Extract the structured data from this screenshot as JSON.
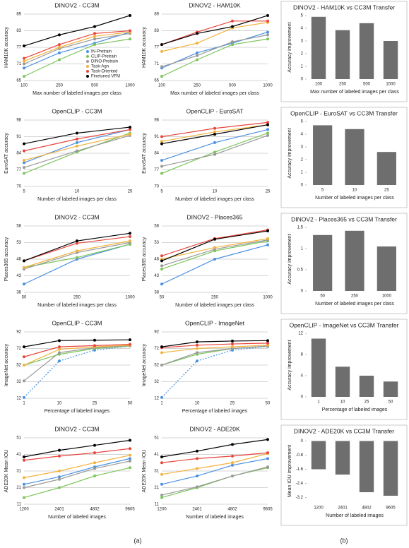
{
  "chart_data": [
    {
      "type": "line",
      "title": "DINOV2 - CC3M",
      "x_label": "Max number of labeled images per class",
      "y_label": "HAM10K accuracy",
      "categories": [
        "100",
        "250",
        "500",
        "1000"
      ],
      "ylim": [
        65,
        89
      ],
      "yticks": [
        65,
        71,
        77,
        83,
        89
      ],
      "grid": true,
      "legend": "lower right",
      "series": [
        {
          "name": "IN-Pretrain",
          "color": "#4a90e2",
          "values": [
            69.5,
            75,
            78.5,
            82.5
          ]
        },
        {
          "name": "CLIP-Pretrain",
          "color": "#7cc55a",
          "values": [
            66.5,
            72.5,
            78,
            80
          ]
        },
        {
          "name": "DINO-Pretrain",
          "color": "#999999",
          "values": [
            71,
            76.5,
            80,
            82
          ]
        },
        {
          "name": "Task-Agn",
          "color": "#f2b33d",
          "values": [
            72,
            77,
            81,
            82.5
          ]
        },
        {
          "name": "Task-Oriented",
          "color": "#e8453c",
          "values": [
            73,
            78,
            82,
            83
          ]
        },
        {
          "name": "Finetuned VFM",
          "color": "#000000",
          "values": [
            77.5,
            81.5,
            84.5,
            88.5
          ]
        }
      ]
    },
    {
      "type": "line",
      "title": "DINOV2 - HAM10K",
      "x_label": "Max number of labeled images per class",
      "y_label": "HAM10K accuracy",
      "categories": [
        "100",
        "250",
        "500",
        "1000"
      ],
      "ylim": [
        65,
        89
      ],
      "yticks": [
        65,
        71,
        77,
        83,
        89
      ],
      "grid": true,
      "series": [
        {
          "color": "#4a90e2",
          "values": [
            69.5,
            75,
            78.5,
            82.5
          ]
        },
        {
          "color": "#7cc55a",
          "values": [
            66.5,
            72.5,
            78,
            80
          ]
        },
        {
          "color": "#999999",
          "values": [
            70,
            74,
            79,
            81.5
          ]
        },
        {
          "color": "#f2b33d",
          "values": [
            75.5,
            78.5,
            84,
            86
          ]
        },
        {
          "color": "#e8453c",
          "values": [
            78,
            82.5,
            86.5,
            86.5
          ]
        },
        {
          "color": "#000000",
          "values": [
            78,
            82,
            84.5,
            88.5
          ]
        }
      ]
    },
    {
      "type": "bar",
      "title": "DINOV2 - HAM10K vs CC3M Transfer",
      "x_label": "Max number of labeled images per class",
      "y_label": "Accuracy improvement",
      "categories": [
        "100",
        "250",
        "500",
        "1000"
      ],
      "values": [
        4.9,
        3.85,
        4.4,
        3.0
      ],
      "color": "#6e6e6e",
      "ylim": [
        0,
        5
      ],
      "yticks": [
        0,
        1,
        2,
        3,
        4,
        5
      ]
    },
    {
      "type": "line",
      "title": "OpenCLIP - CC3M",
      "x_label": "Number of labeled images per class",
      "y_label": "EuroSAT accuracy",
      "categories": [
        "5",
        "10",
        "25"
      ],
      "ylim": [
        70,
        98
      ],
      "yticks": [
        70,
        77,
        84,
        91,
        98
      ],
      "grid": true,
      "series": [
        {
          "color": "#4a90e2",
          "values": [
            80,
            88.5,
            94
          ]
        },
        {
          "color": "#7cc55a",
          "values": [
            75.5,
            84.5,
            92.5
          ]
        },
        {
          "color": "#999999",
          "values": [
            78,
            85,
            91.5
          ]
        },
        {
          "color": "#f2b33d",
          "values": [
            81,
            87,
            92
          ]
        },
        {
          "color": "#e8453c",
          "values": [
            85,
            90,
            94
          ]
        },
        {
          "color": "#000000",
          "values": [
            88,
            92.5,
            95
          ]
        }
      ]
    },
    {
      "type": "line",
      "title": "OpenCLIP - EuroSAT",
      "x_label": "Number of labeled images per class",
      "y_label": "EuroSAT accuracy",
      "categories": [
        "5",
        "10",
        "25"
      ],
      "ylim": [
        70,
        98
      ],
      "yticks": [
        70,
        77,
        84,
        91,
        98
      ],
      "grid": true,
      "series": [
        {
          "color": "#4a90e2",
          "values": [
            81,
            88.5,
            94
          ]
        },
        {
          "color": "#7cc55a",
          "values": [
            75.5,
            84.5,
            92.5
          ]
        },
        {
          "color": "#999999",
          "values": [
            78.5,
            83.5,
            91.5
          ]
        },
        {
          "color": "#f2b33d",
          "values": [
            89,
            93,
            96
          ]
        },
        {
          "color": "#e8453c",
          "values": [
            91,
            94.5,
            97
          ]
        },
        {
          "color": "#000000",
          "values": [
            88,
            92,
            96
          ]
        }
      ]
    },
    {
      "type": "bar",
      "title": "OpenCLIP - EuroSAT vs CC3M Transfer",
      "x_label": "Number of labeled images per class",
      "y_label": "Accuracy improvement",
      "categories": [
        "5",
        "10",
        "25"
      ],
      "values": [
        4.7,
        4.4,
        2.6
      ],
      "color": "#6e6e6e",
      "ylim": [
        0,
        5
      ],
      "yticks": [
        0,
        1,
        2,
        3,
        4,
        5
      ]
    },
    {
      "type": "line",
      "title": "DINOV2 - CC3M",
      "x_label": "Number of labeled images per class",
      "y_label": "Places365 accuracy",
      "categories": [
        "50",
        "250",
        "1000"
      ],
      "ylim": [
        38,
        58
      ],
      "yticks": [
        38,
        43,
        48,
        53,
        58
      ],
      "grid": true,
      "series": [
        {
          "color": "#4a90e2",
          "values": [
            40.5,
            48,
            52.5
          ]
        },
        {
          "color": "#7cc55a",
          "values": [
            45.5,
            48.5,
            52.5
          ]
        },
        {
          "color": "#999999",
          "values": [
            45,
            50,
            53
          ]
        },
        {
          "color": "#f2b33d",
          "values": [
            45.5,
            50.5,
            53.5
          ]
        },
        {
          "color": "#e8453c",
          "values": [
            47.5,
            52.8,
            54.8
          ]
        },
        {
          "color": "#000000",
          "values": [
            47.5,
            53.5,
            55.8
          ]
        }
      ]
    },
    {
      "type": "line",
      "title": "DINOV2 - Places365",
      "x_label": "Number of labeled images per class",
      "y_label": "Places365 accuracy",
      "categories": [
        "50",
        "250",
        "1000"
      ],
      "ylim": [
        38,
        58
      ],
      "yticks": [
        38,
        43,
        48,
        53,
        58
      ],
      "grid": true,
      "series": [
        {
          "color": "#4a90e2",
          "values": [
            40.5,
            48,
            52.3
          ]
        },
        {
          "color": "#7cc55a",
          "values": [
            45,
            50.5,
            53.5
          ]
        },
        {
          "color": "#999999",
          "values": [
            46,
            51,
            53.8
          ]
        },
        {
          "color": "#f2b33d",
          "values": [
            48,
            51.5,
            54.2
          ]
        },
        {
          "color": "#e8453c",
          "values": [
            49,
            54.2,
            56.8
          ]
        },
        {
          "color": "#000000",
          "values": [
            47.5,
            54,
            56.5
          ]
        }
      ]
    },
    {
      "type": "bar",
      "title": "DINOV2 - Places365 vs CC3M Transfer",
      "x_label": "Number of labeled images per class",
      "y_label": "Accuracy improvement",
      "categories": [
        "50",
        "250",
        "1000"
      ],
      "values": [
        1.32,
        1.42,
        1.05
      ],
      "color": "#6e6e6e",
      "ylim": [
        0,
        1.5
      ],
      "yticks": [
        0,
        0.5,
        1,
        1.5
      ]
    },
    {
      "type": "line",
      "title": "OpenCLIP - CC3M",
      "x_label": "Percentage of labeled images",
      "y_label": "ImageNet accuracy",
      "categories": [
        "1",
        "10",
        "25",
        "50"
      ],
      "ylim": [
        12,
        92
      ],
      "yticks": [
        12,
        32,
        52,
        72,
        92
      ],
      "grid": true,
      "series": [
        {
          "color": "#4a90e2",
          "dashed": true,
          "values": [
            13,
            57,
            70,
            75
          ]
        },
        {
          "color": "#7cc55a",
          "values": [
            52,
            65,
            72,
            75
          ]
        },
        {
          "color": "#999999",
          "values": [
            33,
            67,
            73,
            75.5
          ]
        },
        {
          "color": "#f2b33d",
          "values": [
            52,
            71,
            74,
            76
          ]
        },
        {
          "color": "#e8453c",
          "values": [
            62,
            74,
            75.5,
            77
          ]
        },
        {
          "color": "#000000",
          "values": [
            74,
            81.5,
            82,
            82.5
          ]
        }
      ]
    },
    {
      "type": "line",
      "title": "OpenCLIP - ImageNet",
      "x_label": "Percentage of labeled images",
      "y_label": "ImageNet accuracy",
      "categories": [
        "1",
        "10",
        "25",
        "50"
      ],
      "ylim": [
        12,
        92
      ],
      "yticks": [
        12,
        32,
        52,
        72,
        92
      ],
      "grid": true,
      "series": [
        {
          "color": "#4a90e2",
          "dashed": true,
          "values": [
            13,
            57,
            70,
            74.5
          ]
        },
        {
          "color": "#7cc55a",
          "values": [
            52,
            65,
            72,
            75
          ]
        },
        {
          "color": "#999999",
          "values": [
            52,
            67,
            72,
            75
          ]
        },
        {
          "color": "#f2b33d",
          "values": [
            67,
            72,
            74,
            76
          ]
        },
        {
          "color": "#e8453c",
          "values": [
            73,
            76,
            77.5,
            78.5
          ]
        },
        {
          "color": "#000000",
          "values": [
            74,
            80,
            81,
            81.5
          ]
        }
      ]
    },
    {
      "type": "bar",
      "title": "OpenCLIP - ImageNet vs CC3M Transfer",
      "x_label": "Percentage of labeled images",
      "y_label": "Accuracy improvement",
      "categories": [
        "1",
        "10",
        "25",
        "50"
      ],
      "values": [
        11,
        5.7,
        4.0,
        2.9
      ],
      "color": "#6e6e6e",
      "ylim": [
        0,
        12
      ],
      "yticks": [
        0,
        4,
        8,
        12
      ]
    },
    {
      "type": "line",
      "title": "DINOV2 - CC3M",
      "x_label": "Number of labeled images",
      "y_label": "ADE20K Mean IOU",
      "categories": [
        "1200",
        "2401",
        "4802",
        "9605"
      ],
      "ylim": [
        11,
        51
      ],
      "yticks": [
        11,
        21,
        31,
        41,
        51
      ],
      "grid": true,
      "series": [
        {
          "color": "#4a90e2",
          "values": [
            23,
            27.5,
            33.5,
            38.5
          ]
        },
        {
          "color": "#7cc55a",
          "values": [
            15,
            21,
            28,
            33
          ]
        },
        {
          "color": "#999999",
          "values": [
            21,
            26,
            32.5,
            37
          ]
        },
        {
          "color": "#f2b33d",
          "values": [
            27,
            31,
            36,
            40.5
          ]
        },
        {
          "color": "#e8453c",
          "values": [
            37.5,
            40,
            42,
            44.5
          ]
        },
        {
          "color": "#000000",
          "values": [
            39.5,
            43.5,
            46.5,
            49.5
          ]
        }
      ]
    },
    {
      "type": "line",
      "title": "DINOV2 - ADE20K",
      "x_label": "Number of labeled images",
      "y_label": "ADE20K Mean IOU",
      "categories": [
        "1200",
        "2401",
        "4802",
        "9605"
      ],
      "ylim": [
        11,
        51
      ],
      "yticks": [
        11,
        21,
        31,
        41,
        51
      ],
      "grid": true,
      "series": [
        {
          "color": "#4a90e2",
          "values": [
            23,
            28,
            34.5,
            38.5
          ]
        },
        {
          "color": "#7cc55a",
          "values": [
            15,
            21,
            28,
            33
          ]
        },
        {
          "color": "#999999",
          "values": [
            16.5,
            21.5,
            28,
            33.5
          ]
        },
        {
          "color": "#f2b33d",
          "values": [
            29,
            32.5,
            36,
            41.5
          ]
        },
        {
          "color": "#e8453c",
          "values": [
            36,
            38.5,
            40,
            42
          ]
        },
        {
          "color": "#000000",
          "values": [
            39.5,
            43,
            47,
            50
          ]
        }
      ]
    },
    {
      "type": "bar",
      "title": "DINOV2 - ADE20K vs CC3M Transfer",
      "x_label": "Number of labeled images",
      "y_label": "Mean IOU improvement",
      "categories": [
        "1200",
        "2401",
        "4802",
        "9605"
      ],
      "values": [
        -1.6,
        -1.9,
        -2.9,
        -3.1
      ],
      "color": "#6e6e6e",
      "ylim": [
        -3.5,
        0.1
      ],
      "yticks": [
        0,
        -0.8,
        -1.6,
        -2.4,
        -3.2
      ]
    }
  ],
  "panel_labels": [
    "(a)",
    "(b)"
  ]
}
